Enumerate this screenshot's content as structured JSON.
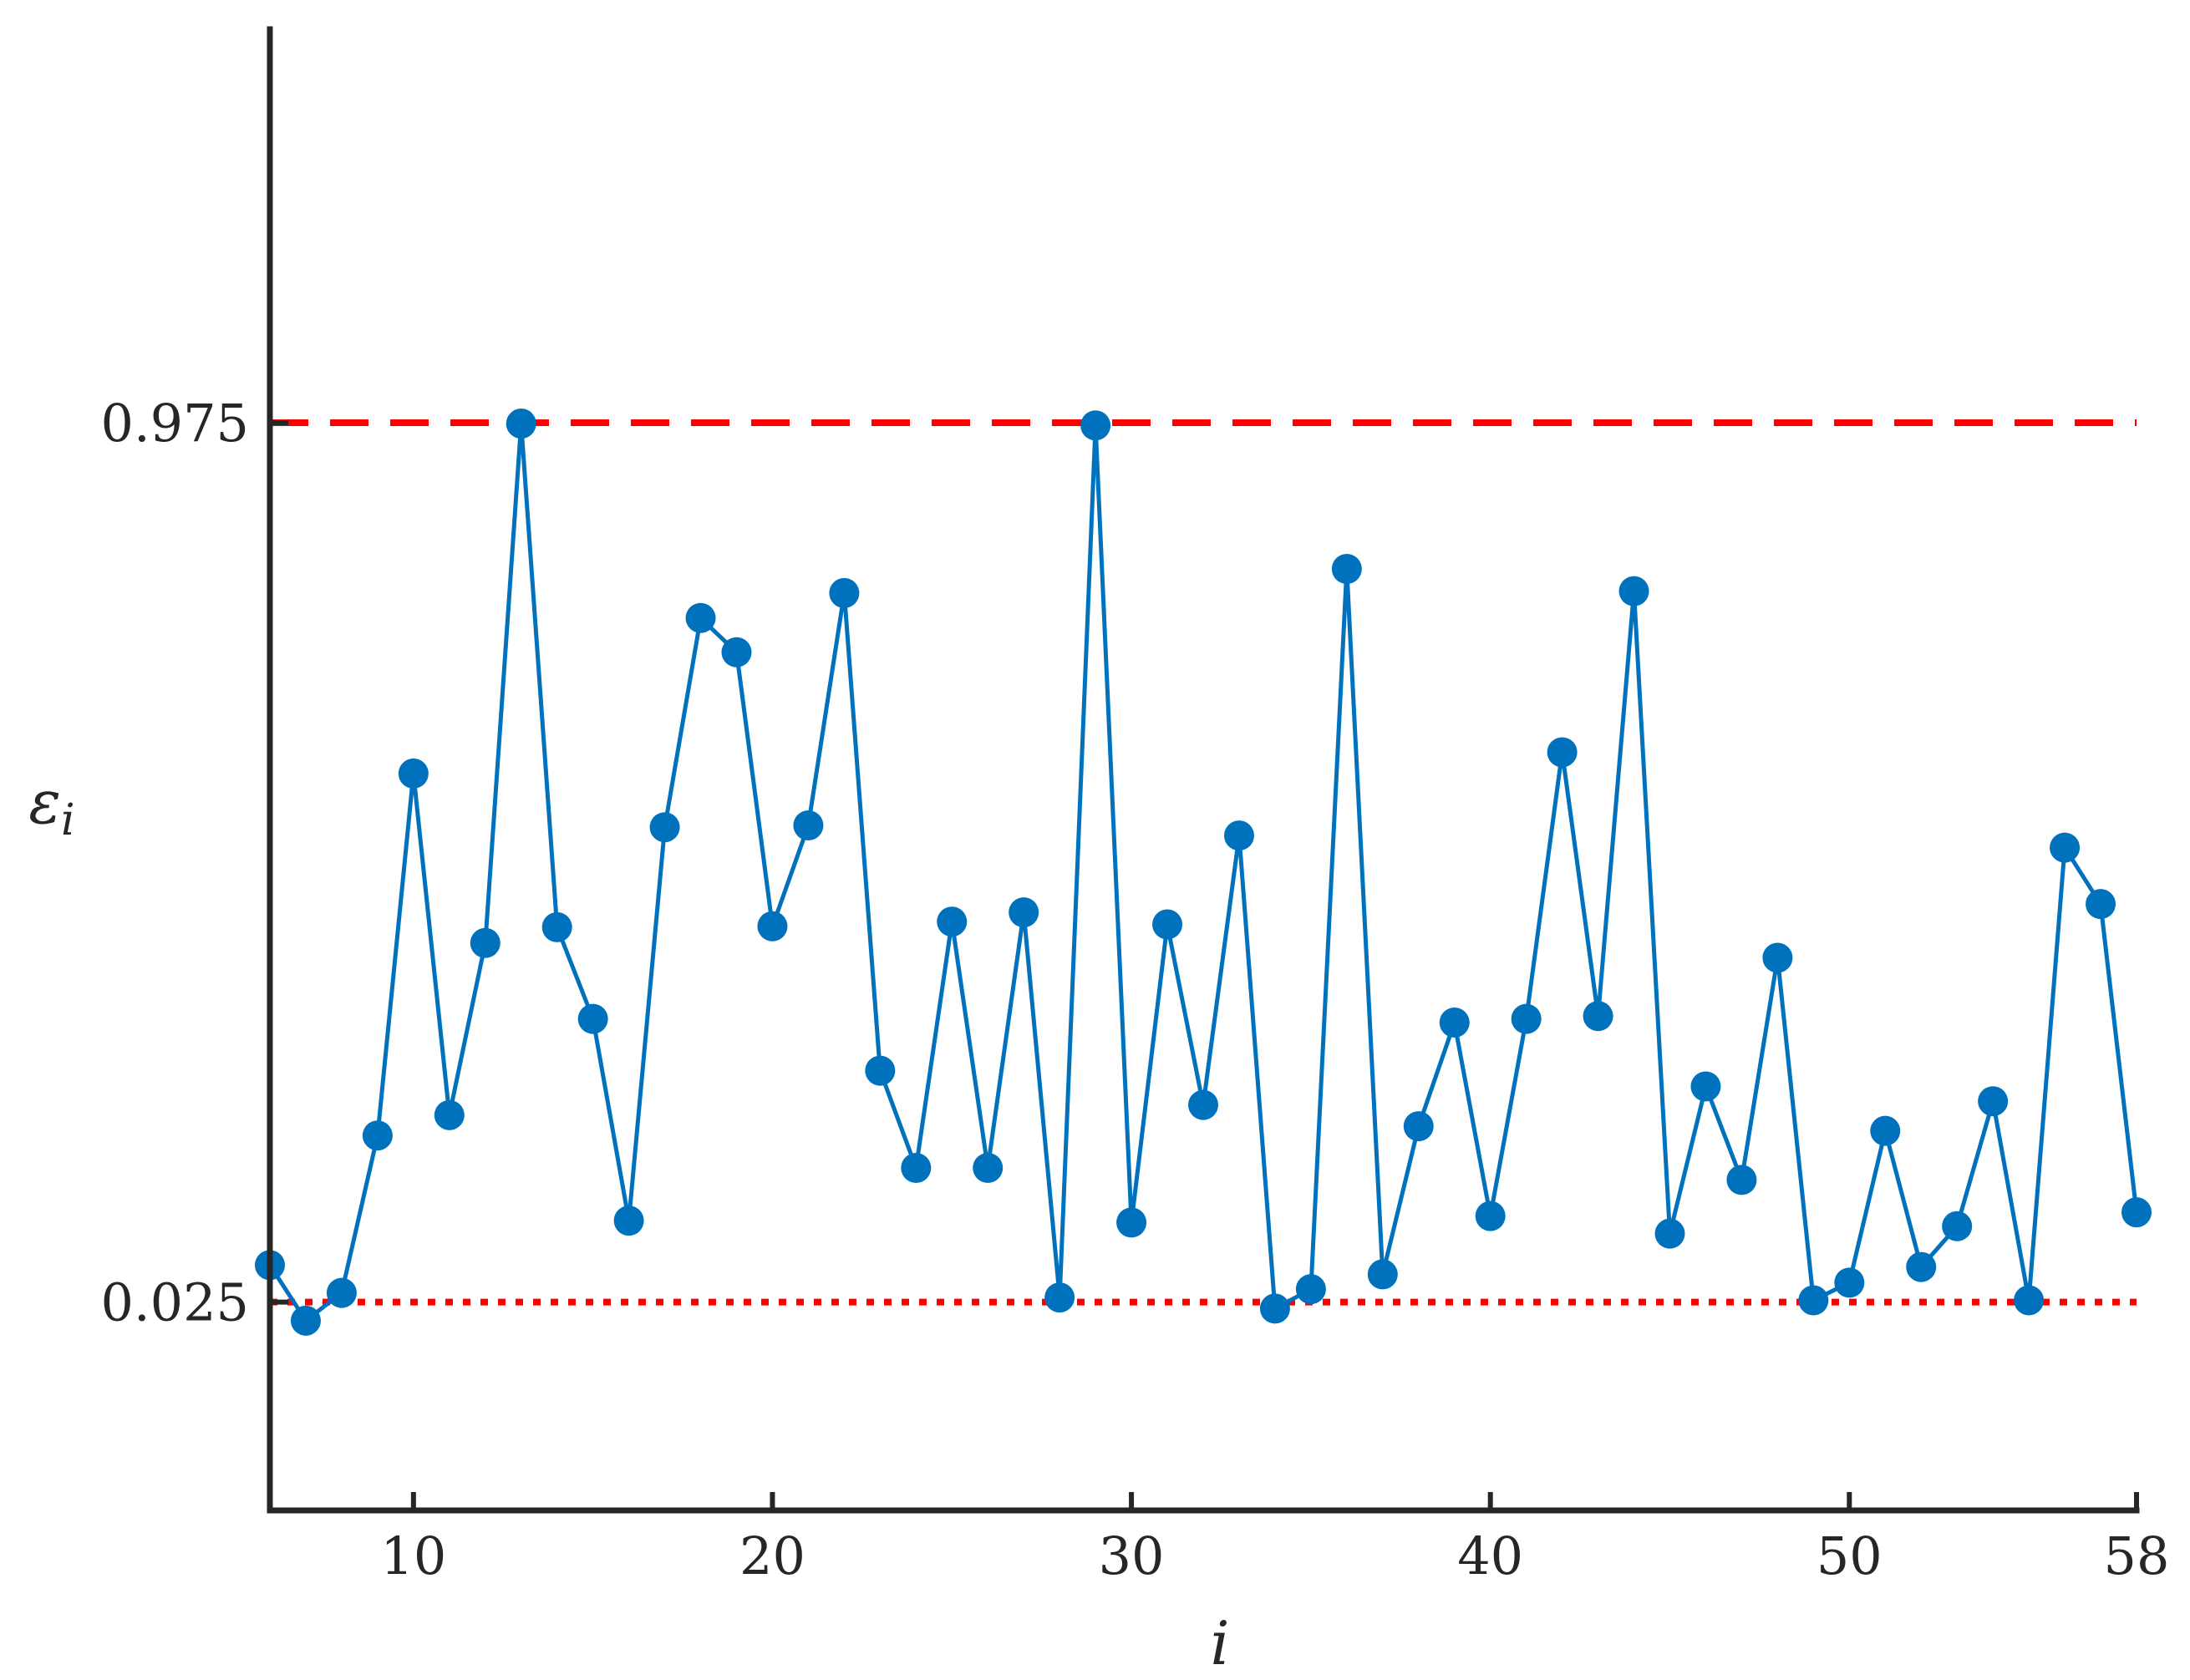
{
  "chart_data": {
    "type": "line",
    "xlabel": "i",
    "ylabel": "ε",
    "ylabel_subscript": "i",
    "xlim": [
      6,
      58
    ],
    "ylim": [
      -0.2,
      1.4
    ],
    "x_ticks": [
      10,
      20,
      30,
      40,
      50,
      58
    ],
    "y_ticks": [
      0.025,
      0.975
    ],
    "y_tick_labels": [
      "0.025",
      "0.975"
    ],
    "grid": false,
    "reference_lines": [
      {
        "value": 0.975,
        "style": "dashed",
        "color": "#ff0000"
      },
      {
        "value": 0.025,
        "style": "dotted",
        "color": "#ff0000"
      }
    ],
    "series": [
      {
        "color": "#0072bd",
        "marker": "circle",
        "x": [
          6,
          7,
          8,
          9,
          10,
          11,
          12,
          13,
          14,
          15,
          16,
          17,
          18,
          19,
          20,
          21,
          22,
          23,
          24,
          25,
          26,
          27,
          28,
          29,
          30,
          31,
          32,
          33,
          34,
          35,
          36,
          37,
          38,
          39,
          40,
          41,
          42,
          43,
          44,
          45,
          46,
          47,
          48,
          49,
          50,
          51,
          52,
          53,
          54,
          55,
          56,
          57,
          58
        ],
        "y": [
          0.065,
          0.005,
          0.035,
          0.205,
          0.596,
          0.227,
          0.413,
          0.974,
          0.43,
          0.331,
          0.113,
          0.538,
          0.764,
          0.727,
          0.431,
          0.54,
          0.791,
          0.275,
          0.17,
          0.436,
          0.17,
          0.446,
          0.03,
          0.972,
          0.111,
          0.433,
          0.238,
          0.529,
          0.018,
          0.039,
          0.817,
          0.055,
          0.215,
          0.327,
          0.118,
          0.331,
          0.619,
          0.334,
          0.793,
          0.099,
          0.258,
          0.157,
          0.397,
          0.027,
          0.046,
          0.21,
          0.063,
          0.107,
          0.242,
          0.027,
          0.516,
          0.455,
          0.122
        ]
      }
    ]
  }
}
